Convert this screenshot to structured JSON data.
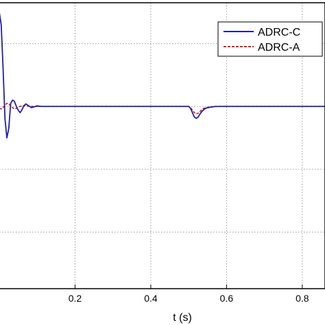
{
  "chart_data": {
    "type": "line",
    "title": "",
    "xlabel": "t (s)",
    "ylabel": "",
    "xlim": [
      0,
      0.86
    ],
    "ylim": [
      -2.9,
      1.65
    ],
    "x_ticks": [
      0.2,
      0.4,
      0.6,
      0.8
    ],
    "x_tick_labels": [
      "0.2",
      "0.4",
      "0.6",
      "0.8"
    ],
    "y_gridlines": [
      -2,
      -1,
      0,
      1
    ],
    "grid": true,
    "legend_position": "top-right",
    "series": [
      {
        "name": "ADRC-C",
        "color": "#1f1fa8",
        "style": "solid",
        "x": [
          0,
          0.005,
          0.01,
          0.015,
          0.02,
          0.025,
          0.03,
          0.035,
          0.04,
          0.045,
          0.05,
          0.055,
          0.06,
          0.065,
          0.07,
          0.075,
          0.08,
          0.085,
          0.09,
          0.095,
          0.1,
          0.11,
          0.12,
          0.13,
          0.15,
          0.2,
          0.3,
          0.4,
          0.5,
          0.505,
          0.51,
          0.515,
          0.52,
          0.525,
          0.53,
          0.535,
          0.54,
          0.545,
          0.55,
          0.56,
          0.57,
          0.58,
          0.6,
          0.65,
          0.7,
          0.8,
          0.86
        ],
        "y": [
          1.5,
          1.3,
          0.6,
          -0.2,
          -0.5,
          -0.35,
          0.05,
          0.1,
          0.08,
          0.0,
          -0.06,
          -0.1,
          -0.05,
          0.01,
          0.04,
          0.02,
          0.0,
          -0.02,
          -0.01,
          0.0,
          0.01,
          0.0,
          0.0,
          0.0,
          0.0,
          0.0,
          0.0,
          0.0,
          0.0,
          -0.03,
          -0.1,
          -0.17,
          -0.19,
          -0.17,
          -0.12,
          -0.08,
          -0.05,
          -0.03,
          -0.02,
          -0.01,
          0.0,
          0.0,
          0.0,
          0.0,
          0.0,
          0.0,
          0.0
        ]
      },
      {
        "name": "ADRC-A",
        "color": "#d62020",
        "style": "dashed",
        "x": [
          0,
          0.005,
          0.01,
          0.015,
          0.02,
          0.025,
          0.03,
          0.035,
          0.04,
          0.045,
          0.05,
          0.06,
          0.07,
          0.08,
          0.1,
          0.12,
          0.2,
          0.3,
          0.4,
          0.5,
          0.505,
          0.51,
          0.515,
          0.52,
          0.525,
          0.53,
          0.535,
          0.54,
          0.55,
          0.56,
          0.58,
          0.6,
          0.7,
          0.8,
          0.86
        ],
        "y": [
          -0.03,
          -0.04,
          -0.02,
          0.02,
          0.05,
          0.04,
          0.01,
          -0.02,
          -0.04,
          -0.03,
          -0.01,
          0.01,
          0.015,
          0.0,
          0.0,
          0.0,
          0.0,
          0.0,
          0.0,
          0.0,
          -0.02,
          -0.06,
          -0.1,
          -0.12,
          -0.11,
          -0.08,
          -0.05,
          -0.03,
          -0.015,
          -0.005,
          0.0,
          0.0,
          0.0,
          0.0,
          0.0
        ]
      }
    ]
  }
}
